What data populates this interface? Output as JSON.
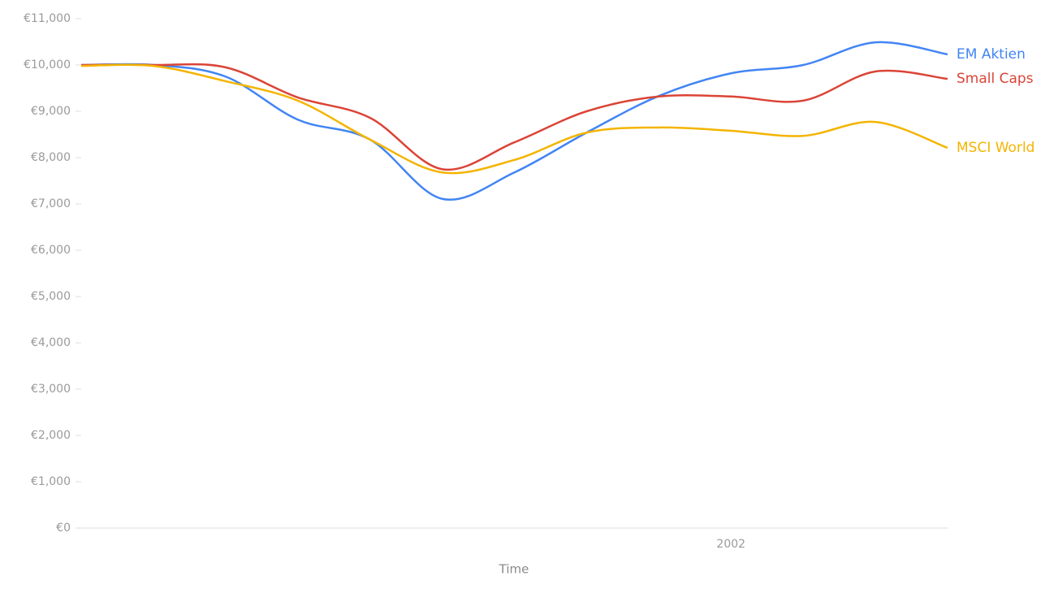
{
  "chart_data": {
    "type": "line",
    "x_label": "Time",
    "categories": [
      null,
      null,
      null,
      null,
      null,
      null,
      null,
      null,
      null,
      "2002",
      null,
      null,
      null
    ],
    "series": [
      {
        "name": "EM Aktien",
        "color": "#4285f4",
        "values": [
          10000,
          10000,
          9750,
          8820,
          8390,
          7110,
          7680,
          8540,
          9330,
          9820,
          10000,
          10490,
          10230
        ]
      },
      {
        "name": "Small Caps",
        "color": "#db4437",
        "values": [
          10000,
          10000,
          9950,
          9300,
          8860,
          7750,
          8330,
          9000,
          9320,
          9320,
          9230,
          9860,
          9700
        ]
      },
      {
        "name": "MSCI World",
        "color": "#f4b400",
        "values": [
          9980,
          9980,
          9650,
          9230,
          8390,
          7680,
          7950,
          8540,
          8650,
          8580,
          8470,
          8770,
          8210
        ]
      }
    ],
    "ylim": [
      0,
      11000
    ],
    "yticks": [
      {
        "value": 0,
        "label": "€0"
      },
      {
        "value": 1000,
        "label": "€1,000"
      },
      {
        "value": 2000,
        "label": "€2,000"
      },
      {
        "value": 3000,
        "label": "€3,000"
      },
      {
        "value": 4000,
        "label": "€4,000"
      },
      {
        "value": 5000,
        "label": "€5,000"
      },
      {
        "value": 6000,
        "label": "€6,000"
      },
      {
        "value": 7000,
        "label": "€7,000"
      },
      {
        "value": 8000,
        "label": "€8,000"
      },
      {
        "value": 9000,
        "label": "€9,000"
      },
      {
        "value": 10000,
        "label": "€10,000"
      },
      {
        "value": 11000,
        "label": "€11,000"
      }
    ]
  }
}
